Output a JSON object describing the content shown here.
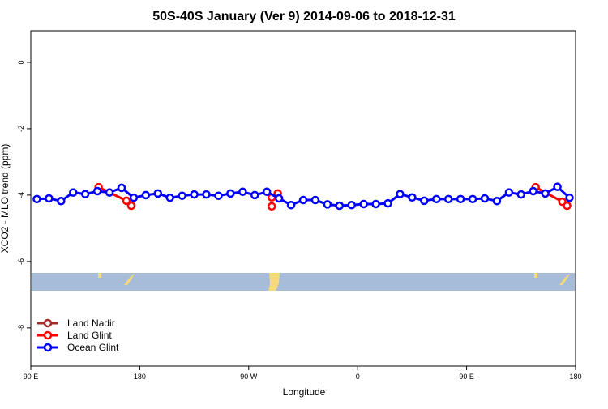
{
  "chart_data": {
    "type": "line",
    "title": "50S-40S January (Ver 9)   2014-09-06 to 2018-12-31",
    "x_label": "Longitude",
    "y_label": "XCO2 - MLO trend (ppm)",
    "xlim": [
      90,
      540
    ],
    "xticks": [
      {
        "value": 90,
        "label": "90 E"
      },
      {
        "value": 180,
        "label": "180"
      },
      {
        "value": 270,
        "label": "90 W"
      },
      {
        "value": 360,
        "label": "0"
      },
      {
        "value": 450,
        "label": "90 E"
      },
      {
        "value": 540,
        "label": "180"
      }
    ],
    "ylim": [
      -9.15,
      0.95
    ],
    "yticks": [
      0,
      -2,
      -4,
      -6,
      -8
    ],
    "legend": "bottom-left",
    "series": [
      {
        "name": "Land Nadir",
        "color": "#a52a2a",
        "x": [],
        "values": []
      },
      {
        "name": "Land Glint",
        "color": "#ff0000",
        "x": [
          146,
          169,
          173,
          null,
          289,
          null,
          289,
          null,
          294,
          null,
          507,
          529,
          533
        ],
        "values": [
          -3.76,
          -4.17,
          -4.32,
          null,
          -4.07,
          null,
          -4.34,
          null,
          -3.95,
          null,
          -3.76,
          -4.2,
          -4.32
        ]
      },
      {
        "name": "Ocean Glint",
        "color": "#0000ff",
        "x": [
          95,
          105,
          115,
          125,
          135,
          145,
          155,
          165,
          175,
          185,
          195,
          205,
          215,
          225,
          235,
          245,
          255,
          265,
          275,
          285,
          295,
          305,
          315,
          325,
          335,
          345,
          355,
          365,
          375,
          385,
          395,
          405,
          415,
          425,
          435,
          445,
          455,
          465,
          475,
          485,
          495,
          505,
          515,
          525,
          535
        ],
        "values": [
          -4.12,
          -4.1,
          -4.18,
          -3.92,
          -3.97,
          -3.88,
          -3.92,
          -3.78,
          -4.08,
          -4.0,
          -3.95,
          -4.08,
          -4.02,
          -3.98,
          -3.98,
          -4.02,
          -3.95,
          -3.9,
          -4.0,
          -3.9,
          -4.1,
          -4.3,
          -4.15,
          -4.15,
          -4.28,
          -4.32,
          -4.3,
          -4.27,
          -4.27,
          -4.25,
          -3.97,
          -4.07,
          -4.17,
          -4.12,
          -4.12,
          -4.12,
          -4.12,
          -4.1,
          -4.18,
          -3.92,
          -3.98,
          -3.88,
          -3.95,
          -3.75,
          -4.08
        ]
      }
    ]
  }
}
